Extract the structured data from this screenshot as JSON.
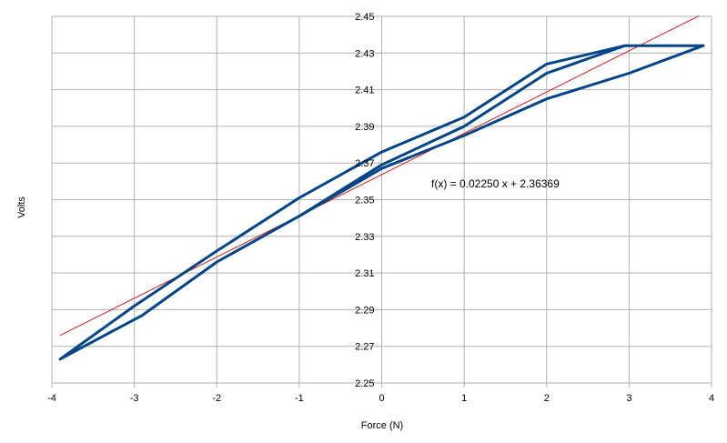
{
  "chart_data": {
    "type": "line",
    "title": "",
    "xlabel": "Force (N)",
    "ylabel": "Volts",
    "xlim": [
      -4,
      4
    ],
    "ylim": [
      2.25,
      2.45
    ],
    "xticks": [
      "-4",
      "-3",
      "-2",
      "-1",
      "0",
      "1",
      "2",
      "3",
      "4"
    ],
    "yticks": [
      "2.25",
      "2.27",
      "2.29",
      "2.31",
      "2.33",
      "2.35",
      "2.37",
      "2.39",
      "2.41",
      "2.43",
      "2.45"
    ],
    "grid": true,
    "legend": "none",
    "series": [
      {
        "color": "#004586",
        "x": [
          -3.9,
          -3,
          -2,
          -1,
          0,
          1,
          2,
          2.95,
          3.9,
          2.95,
          2,
          1,
          0,
          -1,
          -2,
          -2.9,
          -3.9
        ],
        "y": [
          2.263,
          2.292,
          2.322,
          2.351,
          2.376,
          2.395,
          2.424,
          2.434,
          2.434,
          2.434,
          2.419,
          2.39,
          2.369,
          2.341,
          2.316,
          2.287,
          2.263
        ]
      },
      {
        "color": "#004586",
        "x": [
          -1,
          0,
          1,
          2,
          3,
          3.9
        ],
        "y": [
          2.341,
          2.367,
          2.385,
          2.405,
          2.419,
          2.434
        ]
      }
    ],
    "trendline": {
      "color": "#c9211e",
      "slope": 0.0225,
      "intercept": 2.36369,
      "x": [
        -3.9,
        3.85
      ],
      "equation": "f(x) = 0.02250 x + 2.36369"
    }
  }
}
